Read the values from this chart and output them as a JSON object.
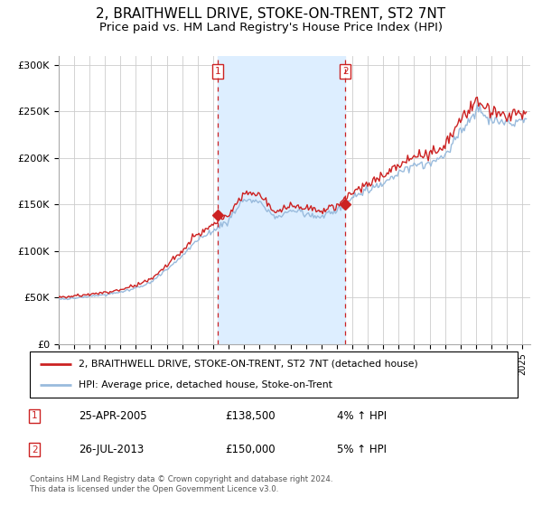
{
  "title": "2, BRAITHWELL DRIVE, STOKE-ON-TRENT, ST2 7NT",
  "subtitle": "Price paid vs. HM Land Registry's House Price Index (HPI)",
  "title_fontsize": 11,
  "subtitle_fontsize": 9.5,
  "ylim": [
    0,
    310000
  ],
  "yticks": [
    0,
    50000,
    100000,
    150000,
    200000,
    250000,
    300000
  ],
  "ytick_labels": [
    "£0",
    "£50K",
    "£100K",
    "£150K",
    "£200K",
    "£250K",
    "£300K"
  ],
  "hpi_color": "#99bbdd",
  "price_color": "#cc2222",
  "annotation_box_color": "#cc2222",
  "shaded_region_color": "#ddeeff",
  "transaction1_date": "25-APR-2005",
  "transaction1_price": 138500,
  "transaction1_x_year": 2005.29,
  "transaction1_pct": "4%",
  "transaction2_date": "26-JUL-2013",
  "transaction2_price": 150000,
  "transaction2_x_year": 2013.55,
  "transaction2_pct": "5%",
  "legend1_label": "2, BRAITHWELL DRIVE, STOKE-ON-TRENT, ST2 7NT (detached house)",
  "legend2_label": "HPI: Average price, detached house, Stoke-on-Trent",
  "footer": "Contains HM Land Registry data © Crown copyright and database right 2024.\nThis data is licensed under the Open Government Licence v3.0.",
  "xlim_left": 1995.0,
  "xlim_right": 2025.5
}
